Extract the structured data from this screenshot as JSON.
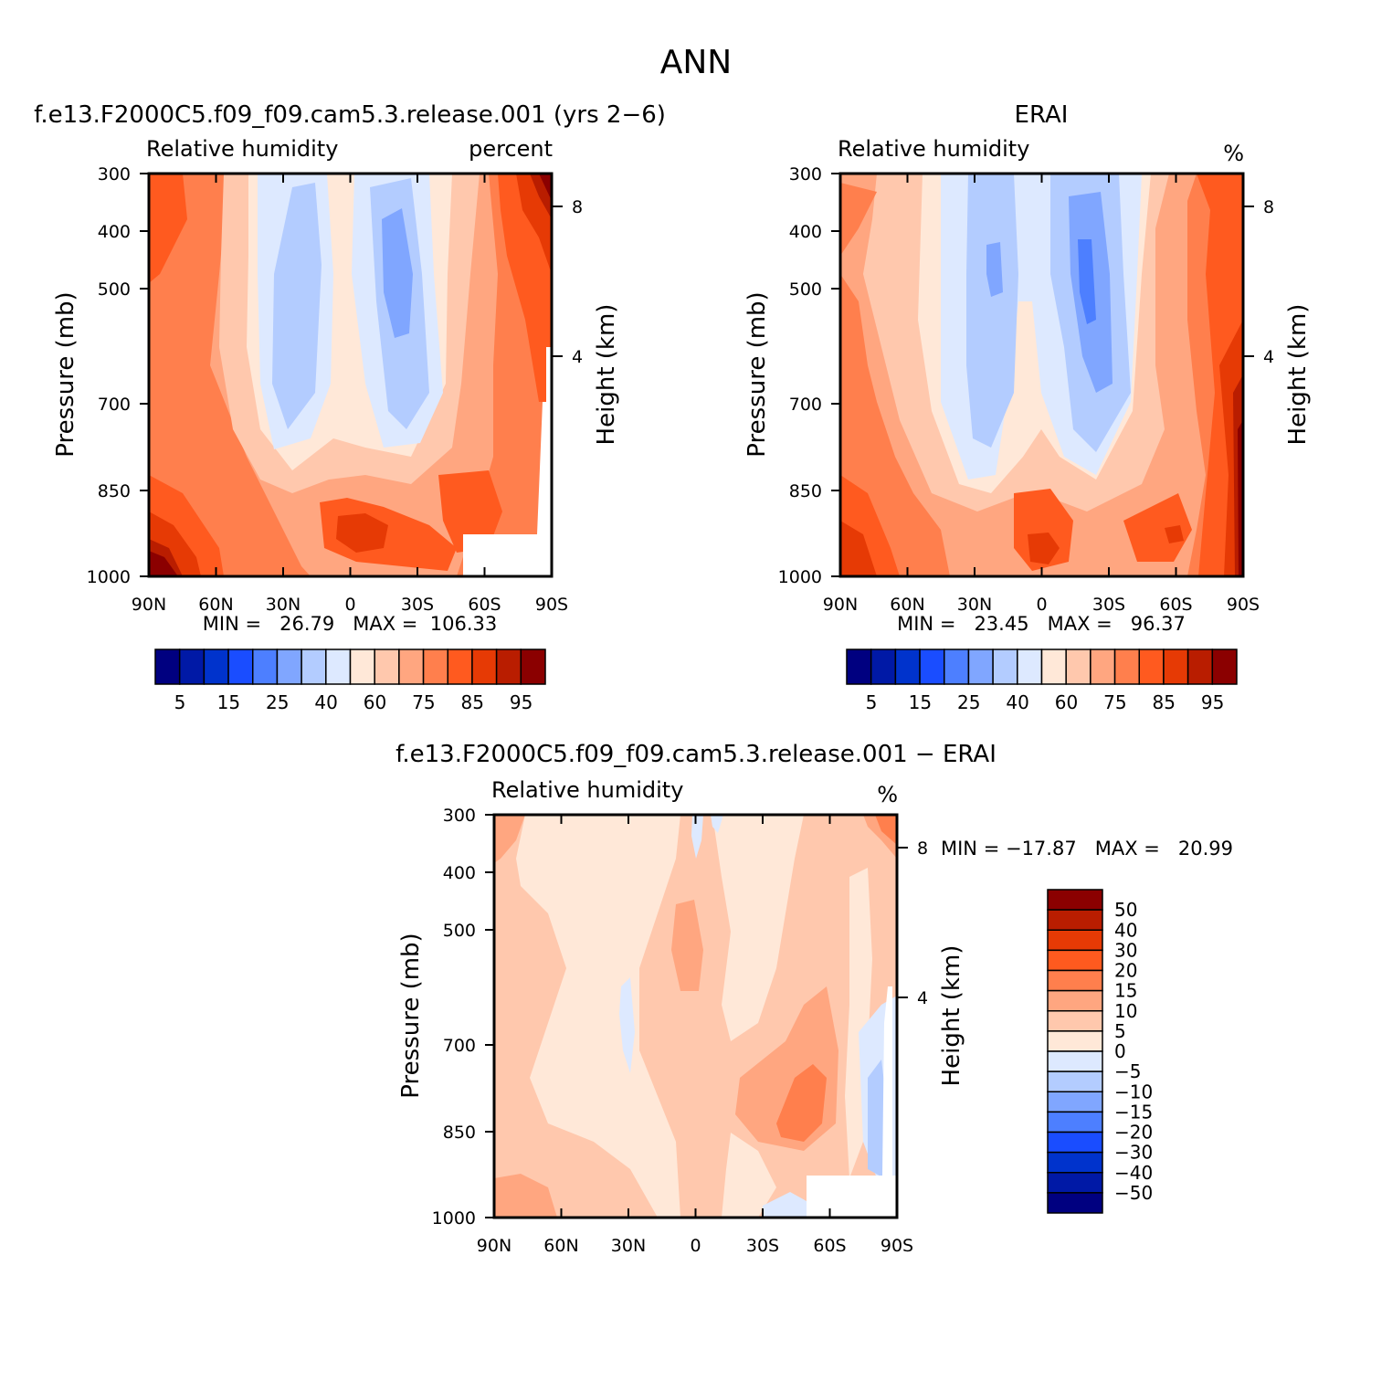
{
  "figure": {
    "title": "ANN"
  },
  "panels": [
    {
      "id": "model",
      "title": "f.e13.F2000C5.f09_f09.cam5.3.release.001 (yrs 2−6)",
      "left_label": "Relative humidity",
      "right_label": "percent",
      "min_max": "MIN =   26.79   MAX =  106.33"
    },
    {
      "id": "obs",
      "title": "ERAI",
      "left_label": "Relative humidity",
      "right_label": "%",
      "min_max": "MIN =   23.45   MAX =   96.37"
    },
    {
      "id": "diff",
      "title": "f.e13.F2000C5.f09_f09.cam5.3.release.001 − ERAI",
      "left_label": "Relative humidity",
      "right_label": "%",
      "min_max": "MIN = −17.87   MAX =   20.99"
    }
  ],
  "axes": {
    "x_ticks": [
      "90N",
      "60N",
      "30N",
      "0",
      "30S",
      "60S",
      "90S"
    ],
    "y_ticks": [
      "300",
      "400",
      "500",
      "700",
      "850",
      "1000"
    ],
    "y_label": "Pressure (mb)",
    "y2_ticks": [
      "8",
      "4"
    ],
    "y2_label": "Height (km)"
  },
  "colorbar_abs": {
    "labels": [
      "5",
      "15",
      "25",
      "40",
      "60",
      "75",
      "85",
      "95"
    ],
    "colors": [
      "#000080",
      "#0019a6",
      "#0033cc",
      "#1a4dff",
      "#4d7fff",
      "#80a6ff",
      "#b3ccff",
      "#dde9ff",
      "#ffe8d8",
      "#ffc8ad",
      "#ffa680",
      "#ff7f4d",
      "#ff5a1f",
      "#e63a05",
      "#b91d00",
      "#8b0000"
    ]
  },
  "colorbar_diff": {
    "labels": [
      "50",
      "40",
      "30",
      "20",
      "15",
      "10",
      "5",
      "0",
      "−5",
      "−10",
      "−15",
      "−20",
      "−30",
      "−40",
      "−50"
    ],
    "colors": [
      "#8b0000",
      "#b91d00",
      "#e63a05",
      "#ff5a1f",
      "#ff7f4d",
      "#ffa680",
      "#ffc8ad",
      "#ffe8d8",
      "#dde9ff",
      "#b3ccff",
      "#80a6ff",
      "#4d7fff",
      "#1a4dff",
      "#0033cc",
      "#0019a6",
      "#000080"
    ]
  },
  "chart_data": [
    {
      "type": "heatmap",
      "title": "Relative humidity",
      "x": [
        "90N",
        "60N",
        "30N",
        "0",
        "30S",
        "60S",
        "90S"
      ],
      "y": [
        300,
        400,
        500,
        700,
        850,
        1000
      ],
      "units": "percent",
      "min": 26.79,
      "max": 106.33
    },
    {
      "type": "heatmap",
      "title": "Relative humidity",
      "x": [
        "90N",
        "60N",
        "30N",
        "0",
        "30S",
        "60S",
        "90S"
      ],
      "y": [
        300,
        400,
        500,
        700,
        850,
        1000
      ],
      "units": "%",
      "min": 23.45,
      "max": 96.37
    },
    {
      "type": "heatmap",
      "title": "Relative humidity",
      "x": [
        "90N",
        "60N",
        "30N",
        "0",
        "30S",
        "60S",
        "90S"
      ],
      "y": [
        300,
        400,
        500,
        700,
        850,
        1000
      ],
      "units": "%",
      "min": -17.87,
      "max": 20.99
    }
  ]
}
